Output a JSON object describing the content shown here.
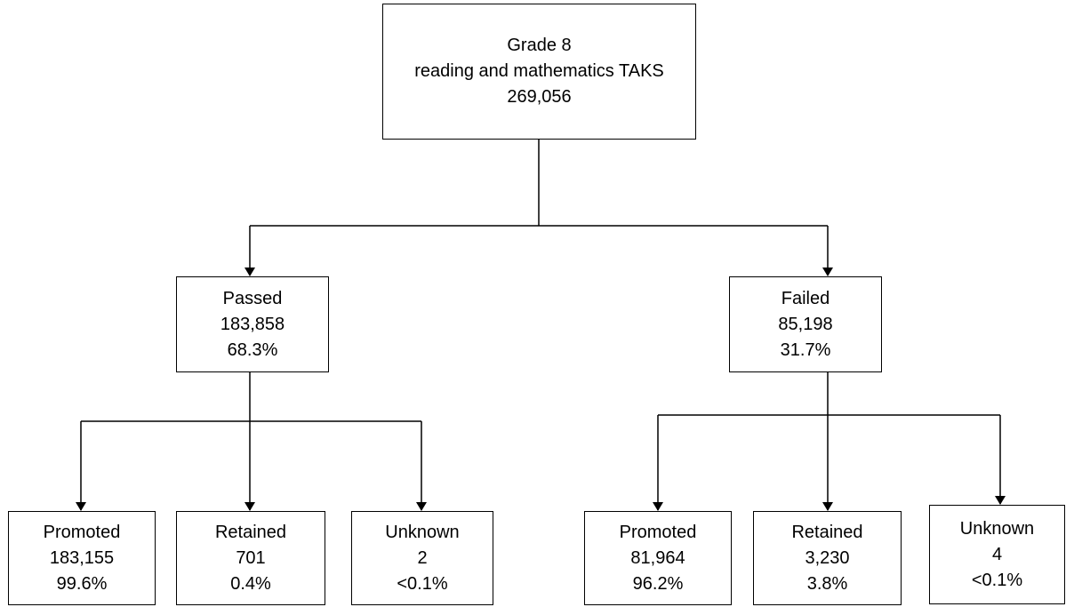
{
  "root": {
    "line1": "Grade 8",
    "line2": "reading and mathematics TAKS",
    "count": "269,056"
  },
  "passed": {
    "label": "Passed",
    "count": "183,858",
    "percent": "68.3%",
    "children": [
      {
        "label": "Promoted",
        "count": "183,155",
        "percent": "99.6%"
      },
      {
        "label": "Retained",
        "count": "701",
        "percent": "0.4%"
      },
      {
        "label": "Unknown",
        "count": "2",
        "percent": "<0.1%"
      }
    ]
  },
  "failed": {
    "label": "Failed",
    "count": "85,198",
    "percent": "31.7%",
    "children": [
      {
        "label": "Promoted",
        "count": "81,964",
        "percent": "96.2%"
      },
      {
        "label": "Retained",
        "count": "3,230",
        "percent": "3.8%"
      },
      {
        "label": "Unknown",
        "count": "4",
        "percent": "<0.1%"
      }
    ]
  }
}
